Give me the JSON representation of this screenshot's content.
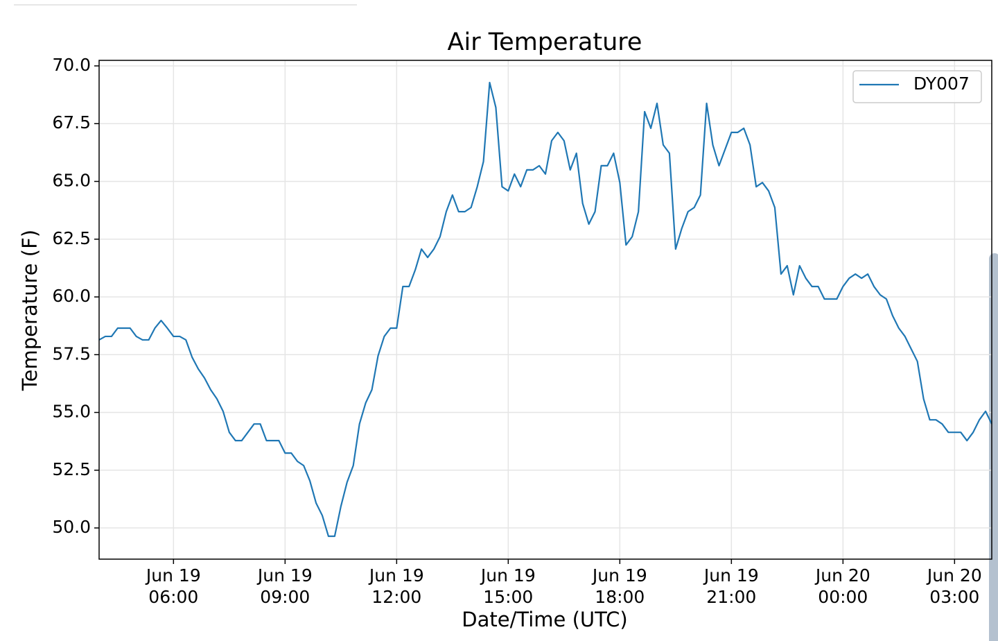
{
  "chart_data": {
    "type": "line",
    "title": "Air Temperature",
    "x_label": "Date/Time (UTC)",
    "y_label": "Temperature (F)",
    "x": [
      "Jun 19 04:00",
      "Jun 19 04:10",
      "Jun 19 04:20",
      "Jun 19 04:30",
      "Jun 19 04:40",
      "Jun 19 04:50",
      "Jun 19 05:00",
      "Jun 19 05:10",
      "Jun 19 05:20",
      "Jun 19 05:30",
      "Jun 19 05:40",
      "Jun 19 05:50",
      "Jun 19 06:00",
      "Jun 19 06:10",
      "Jun 19 06:20",
      "Jun 19 06:30",
      "Jun 19 06:40",
      "Jun 19 06:50",
      "Jun 19 07:00",
      "Jun 19 07:10",
      "Jun 19 07:20",
      "Jun 19 07:30",
      "Jun 19 07:40",
      "Jun 19 07:50",
      "Jun 19 08:00",
      "Jun 19 08:10",
      "Jun 19 08:20",
      "Jun 19 08:30",
      "Jun 19 08:40",
      "Jun 19 08:50",
      "Jun 19 09:00",
      "Jun 19 09:10",
      "Jun 19 09:20",
      "Jun 19 09:30",
      "Jun 19 09:40",
      "Jun 19 09:50",
      "Jun 19 10:00",
      "Jun 19 10:10",
      "Jun 19 10:20",
      "Jun 19 10:30",
      "Jun 19 10:40",
      "Jun 19 10:50",
      "Jun 19 11:00",
      "Jun 19 11:10",
      "Jun 19 11:20",
      "Jun 19 11:30",
      "Jun 19 11:40",
      "Jun 19 11:50",
      "Jun 19 12:00",
      "Jun 19 12:10",
      "Jun 19 12:20",
      "Jun 19 12:30",
      "Jun 19 12:40",
      "Jun 19 12:50",
      "Jun 19 13:00",
      "Jun 19 13:10",
      "Jun 19 13:20",
      "Jun 19 13:30",
      "Jun 19 13:40",
      "Jun 19 13:50",
      "Jun 19 14:00",
      "Jun 19 14:10",
      "Jun 19 14:20",
      "Jun 19 14:30",
      "Jun 19 14:40",
      "Jun 19 14:50",
      "Jun 19 15:00",
      "Jun 19 15:10",
      "Jun 19 15:20",
      "Jun 19 15:30",
      "Jun 19 15:40",
      "Jun 19 15:50",
      "Jun 19 16:00",
      "Jun 19 16:10",
      "Jun 19 16:20",
      "Jun 19 16:30",
      "Jun 19 16:40",
      "Jun 19 16:50",
      "Jun 19 17:00",
      "Jun 19 17:10",
      "Jun 19 17:20",
      "Jun 19 17:30",
      "Jun 19 17:40",
      "Jun 19 17:50",
      "Jun 19 18:00",
      "Jun 19 18:10",
      "Jun 19 18:20",
      "Jun 19 18:30",
      "Jun 19 18:40",
      "Jun 19 18:50",
      "Jun 19 19:00",
      "Jun 19 19:10",
      "Jun 19 19:20",
      "Jun 19 19:30",
      "Jun 19 19:40",
      "Jun 19 19:50",
      "Jun 19 20:00",
      "Jun 19 20:10",
      "Jun 19 20:20",
      "Jun 19 20:30",
      "Jun 19 20:40",
      "Jun 19 20:50",
      "Jun 19 21:00",
      "Jun 19 21:10",
      "Jun 19 21:20",
      "Jun 19 21:30",
      "Jun 19 21:40",
      "Jun 19 21:50",
      "Jun 19 22:00",
      "Jun 19 22:10",
      "Jun 19 22:20",
      "Jun 19 22:30",
      "Jun 19 22:40",
      "Jun 19 22:50",
      "Jun 19 23:00",
      "Jun 19 23:10",
      "Jun 19 23:20",
      "Jun 19 23:30",
      "Jun 19 23:40",
      "Jun 19 23:50",
      "Jun 20 00:00",
      "Jun 20 00:10",
      "Jun 20 00:20",
      "Jun 20 00:30",
      "Jun 20 00:40",
      "Jun 20 00:50",
      "Jun 20 01:00",
      "Jun 20 01:10",
      "Jun 20 01:20",
      "Jun 20 01:30",
      "Jun 20 01:40",
      "Jun 20 01:50",
      "Jun 20 02:00",
      "Jun 20 02:10",
      "Jun 20 02:20",
      "Jun 20 02:30",
      "Jun 20 02:40",
      "Jun 20 02:50",
      "Jun 20 03:00",
      "Jun 20 03:10",
      "Jun 20 03:20",
      "Jun 20 03:30",
      "Jun 20 03:40",
      "Jun 20 03:50",
      "Jun 20 04:00"
    ],
    "series": [
      {
        "name": "DY007",
        "color": "#1f77b4",
        "values": [
          58.14,
          58.29,
          58.29,
          58.65,
          58.65,
          58.65,
          58.29,
          58.14,
          58.14,
          58.65,
          58.98,
          58.65,
          58.29,
          58.29,
          58.14,
          57.39,
          56.88,
          56.49,
          55.98,
          55.59,
          55.05,
          54.14,
          53.78,
          53.78,
          54.14,
          54.5,
          54.5,
          53.78,
          53.78,
          53.78,
          53.24,
          53.24,
          52.88,
          52.7,
          52.04,
          51.08,
          50.54,
          49.64,
          49.64,
          50.93,
          51.98,
          52.7,
          54.5,
          55.41,
          55.98,
          57.45,
          58.29,
          58.65,
          58.65,
          60.45,
          60.45,
          61.17,
          62.07,
          61.71,
          62.07,
          62.61,
          63.69,
          64.41,
          63.69,
          63.69,
          63.87,
          64.77,
          65.86,
          69.28,
          68.2,
          64.77,
          64.59,
          65.32,
          64.77,
          65.5,
          65.5,
          65.68,
          65.32,
          66.76,
          67.12,
          66.76,
          65.5,
          66.22,
          64.05,
          63.15,
          63.69,
          65.68,
          65.68,
          66.22,
          64.95,
          62.25,
          62.61,
          63.69,
          68.02,
          67.3,
          68.38,
          66.58,
          66.22,
          62.07,
          62.97,
          63.69,
          63.87,
          64.41,
          68.38,
          66.58,
          65.68,
          66.4,
          67.12,
          67.12,
          67.3,
          66.58,
          64.77,
          64.95,
          64.59,
          63.87,
          60.99,
          61.35,
          60.09,
          61.35,
          60.81,
          60.45,
          60.45,
          59.91,
          59.91,
          59.91,
          60.45,
          60.81,
          60.99,
          60.81,
          60.99,
          60.45,
          60.09,
          59.91,
          59.19,
          58.65,
          58.29,
          57.75,
          57.21,
          55.59,
          54.68,
          54.68,
          54.5,
          54.14,
          54.14,
          54.14,
          53.78,
          54.14,
          54.68,
          55.05,
          54.5
        ]
      }
    ],
    "xlim": [
      "Jun 19 04:00",
      "Jun 20 04:00"
    ],
    "xticks": [
      "Jun 19 06:00",
      "Jun 19 09:00",
      "Jun 19 12:00",
      "Jun 19 15:00",
      "Jun 19 18:00",
      "Jun 19 21:00",
      "Jun 20 00:00",
      "Jun 20 03:00"
    ],
    "ylim": [
      48.65,
      70.24
    ],
    "yticks": [
      {
        "value": 50,
        "label": "50.0"
      },
      {
        "value": 52.5,
        "label": "52.5"
      },
      {
        "value": 55,
        "label": "55.0"
      },
      {
        "value": 57.5,
        "label": "57.5"
      },
      {
        "value": 60,
        "label": "60.0"
      },
      {
        "value": 62.5,
        "label": "62.5"
      },
      {
        "value": 65,
        "label": "65.0"
      },
      {
        "value": 67.5,
        "label": "67.5"
      },
      {
        "value": 70,
        "label": "70.0"
      }
    ],
    "grid": true,
    "legend": "upper right"
  }
}
